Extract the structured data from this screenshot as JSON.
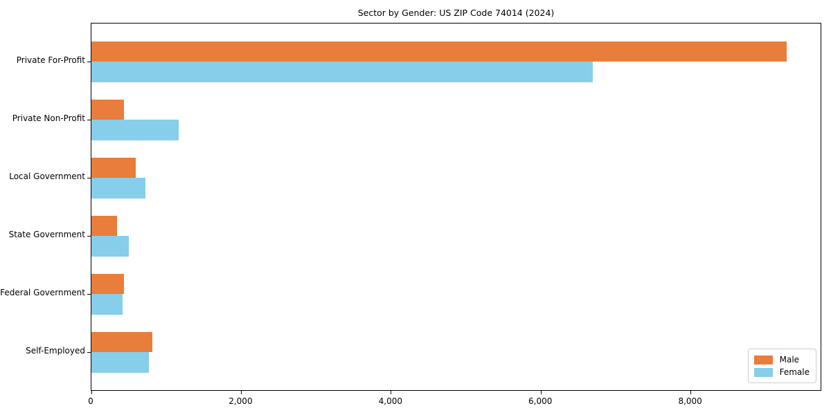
{
  "title": "Sector by Gender: US ZIP Code 74014 (2024)",
  "colors": {
    "male": "#e87d3c",
    "female": "#87ceeb",
    "axis": "#000000",
    "legend_border": "#cccccc",
    "background": "#ffffff"
  },
  "chart_data": {
    "type": "bar",
    "orientation": "horizontal",
    "title": "Sector by Gender: US ZIP Code 74014 (2024)",
    "categories": [
      "Private For-Profit",
      "Private Non-Profit",
      "Local Government",
      "State Government",
      "Federal Government",
      "Self-Employed"
    ],
    "series": [
      {
        "name": "Male",
        "color": "#e87d3c",
        "values": [
          9280,
          430,
          590,
          340,
          430,
          815
        ]
      },
      {
        "name": "Female",
        "color": "#87ceeb",
        "values": [
          6690,
          1165,
          720,
          500,
          420,
          770
        ]
      }
    ],
    "xlabel": "",
    "ylabel": "",
    "xlim": [
      0,
      9750
    ],
    "xticks": [
      0,
      2000,
      4000,
      6000,
      8000
    ],
    "xtick_labels": [
      "0",
      "2,000",
      "4,000",
      "6,000",
      "8,000"
    ],
    "grid": false,
    "legend": {
      "position": "lower right",
      "entries": [
        "Male",
        "Female"
      ]
    }
  }
}
